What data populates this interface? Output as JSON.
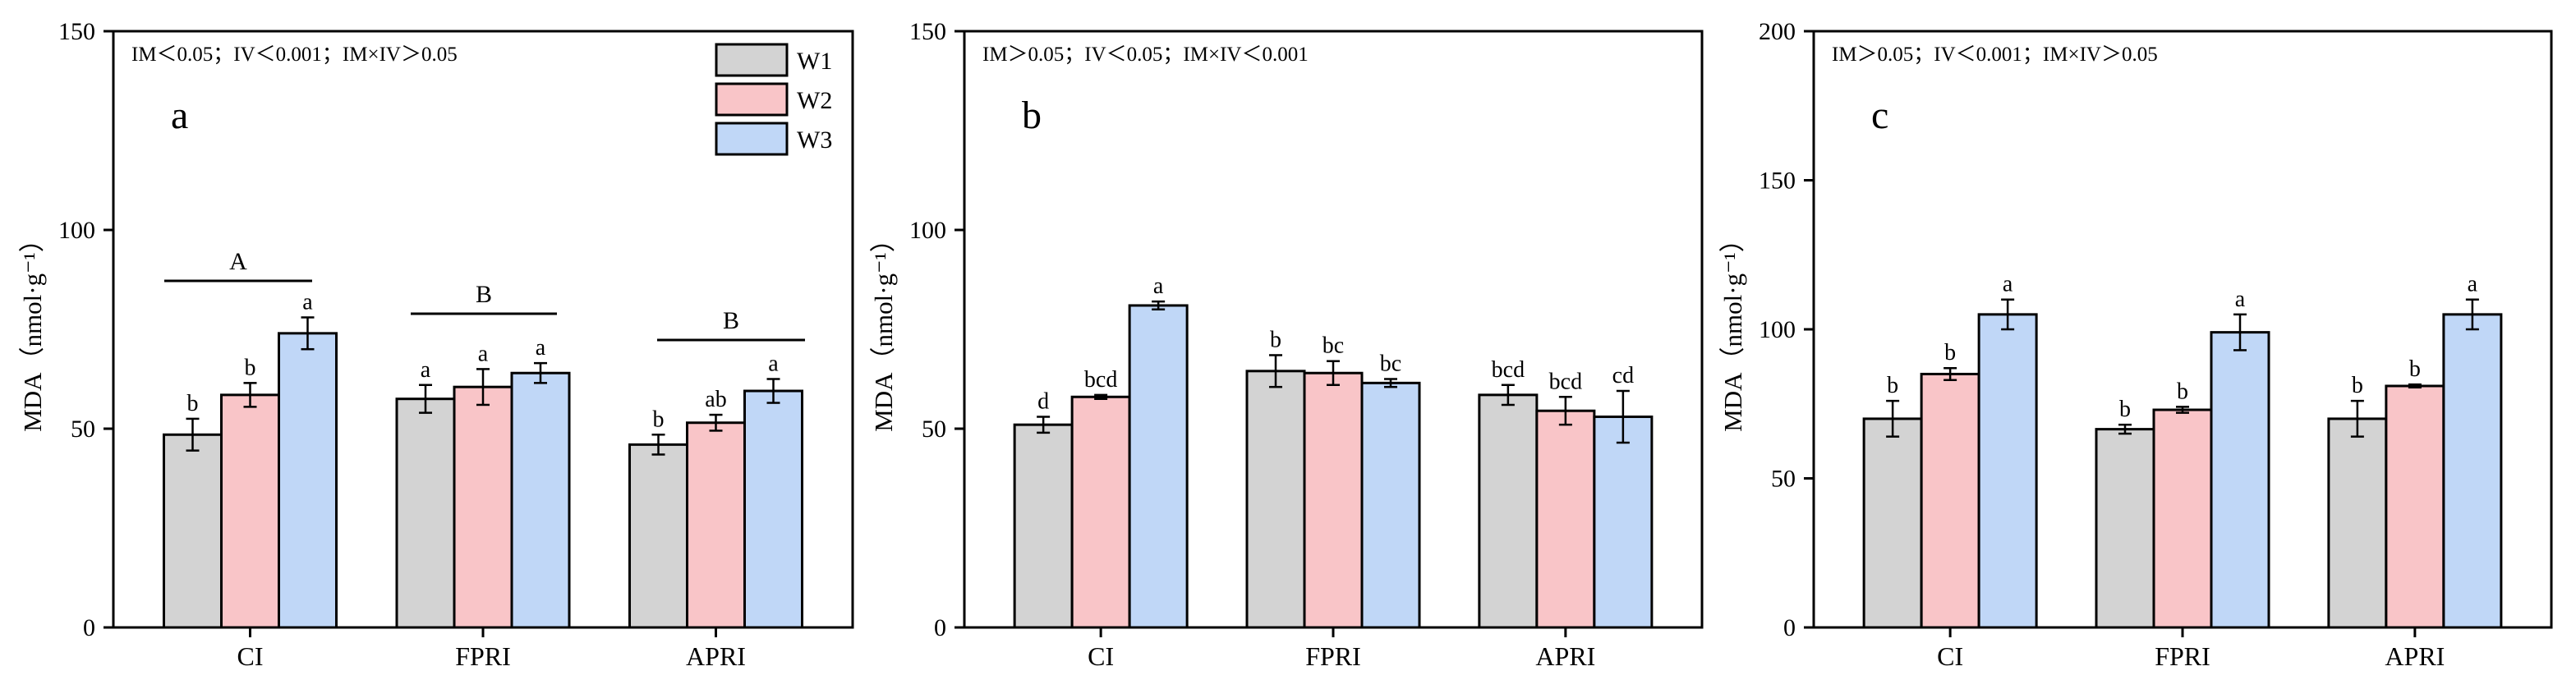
{
  "legend": [
    {
      "name": "W1",
      "color": "#d3d3d3"
    },
    {
      "name": "W2",
      "color": "#f9c5c8"
    },
    {
      "name": "W3",
      "color": "#c0d7f7"
    }
  ],
  "chart_data": [
    {
      "type": "bar",
      "panel_label": "a",
      "annotation": "IM＜0.05；IV＜0.001；IM×IV＞0.05",
      "ylabel": "MDA（nmol·g⁻¹）",
      "ylim": [
        0,
        150
      ],
      "yticks": [
        0,
        50,
        100,
        150
      ],
      "categories": [
        "CI",
        "FPRI",
        "APRI"
      ],
      "series": [
        {
          "name": "W1",
          "values": [
            48.5,
            57.5,
            46
          ],
          "errors": [
            4,
            3.5,
            2.5
          ],
          "letters": [
            "b",
            "a",
            "b"
          ]
        },
        {
          "name": "W2",
          "values": [
            58.5,
            60.5,
            51.5
          ],
          "errors": [
            3,
            4.5,
            2
          ],
          "letters": [
            "b",
            "a",
            "ab"
          ]
        },
        {
          "name": "W3",
          "values": [
            74,
            64,
            59.5
          ],
          "errors": [
            4,
            2.5,
            3
          ],
          "letters": [
            "a",
            "a",
            "a"
          ]
        }
      ],
      "group_letters": [
        "A",
        "B",
        "B"
      ],
      "legend_shown": true
    },
    {
      "type": "bar",
      "panel_label": "b",
      "annotation": "IM＞0.05；IV＜0.05；IM×IV＜0.001",
      "ylabel": "MDA（nmol·g⁻¹）",
      "ylim": [
        0,
        150
      ],
      "yticks": [
        0,
        50,
        100,
        150
      ],
      "categories": [
        "CI",
        "FPRI",
        "APRI"
      ],
      "series": [
        {
          "name": "W1",
          "values": [
            51,
            64.5,
            58.5
          ],
          "errors": [
            2,
            4,
            2.5
          ],
          "letters": [
            "d",
            "b",
            "bcd"
          ]
        },
        {
          "name": "W2",
          "values": [
            58,
            64,
            54.5
          ],
          "errors": [
            0.5,
            3,
            3.5
          ],
          "letters": [
            "bcd",
            "bc",
            "bcd"
          ]
        },
        {
          "name": "W3",
          "values": [
            81,
            61.5,
            53
          ],
          "errors": [
            1,
            1,
            6.5
          ],
          "letters": [
            "a",
            "bc",
            "cd"
          ]
        }
      ],
      "legend_shown": false
    },
    {
      "type": "bar",
      "panel_label": "c",
      "annotation": "IM＞0.05；IV＜0.001；IM×IV＞0.05",
      "ylabel": "MDA（nmol·g⁻¹）",
      "ylim": [
        0,
        200
      ],
      "yticks": [
        0,
        50,
        100,
        150,
        200
      ],
      "categories": [
        "CI",
        "FPRI",
        "APRI"
      ],
      "series": [
        {
          "name": "W1",
          "values": [
            70,
            66.5,
            70
          ],
          "errors": [
            6,
            1.5,
            6
          ],
          "letters": [
            "b",
            "b",
            "b"
          ]
        },
        {
          "name": "W2",
          "values": [
            85,
            73,
            81
          ],
          "errors": [
            2,
            1,
            0.5
          ],
          "letters": [
            "b",
            "b",
            "b"
          ]
        },
        {
          "name": "W3",
          "values": [
            105,
            99,
            105
          ],
          "errors": [
            5,
            6,
            5
          ],
          "letters": [
            "a",
            "a",
            "a"
          ]
        }
      ],
      "legend_shown": false
    }
  ]
}
